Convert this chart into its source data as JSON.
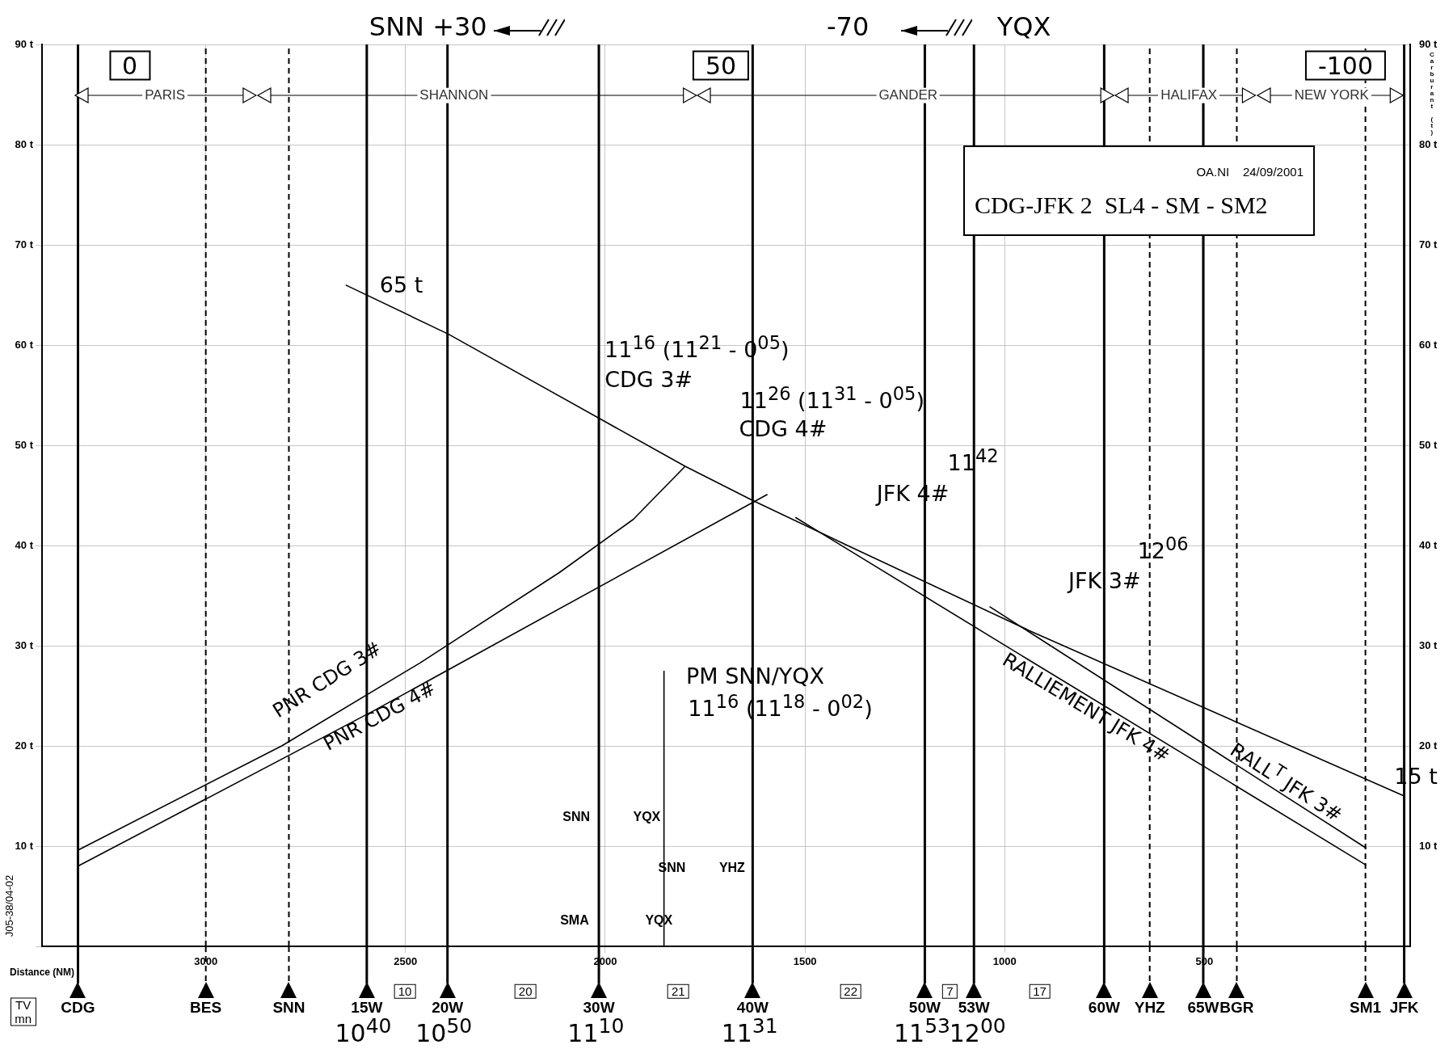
{
  "chart_data": {
    "type": "line",
    "title": "CDG-JFK 2  SL4 - SM - SM2",
    "subtitle": "OA.NI    24/09/2001",
    "xlabel": "Distance (NM)",
    "ylabel": "J05-38/04-02",
    "y2label": "Carburant (t)",
    "xlim": [
      3410,
      -15
    ],
    "xticks": [
      3000,
      2500,
      2000,
      1500,
      1000,
      500
    ],
    "ylim": [
      0,
      90
    ],
    "yticks": [
      {
        "value": 0,
        "label": null
      },
      {
        "value": 10,
        "label": "10 t"
      },
      {
        "value": 20,
        "label": "20 t"
      },
      {
        "value": 30,
        "label": "30 t"
      },
      {
        "value": 40,
        "label": "40 t"
      },
      {
        "value": 50,
        "label": "50 t"
      },
      {
        "value": 60,
        "label": "60 t"
      },
      {
        "value": 70,
        "label": "70 t"
      },
      {
        "value": 80,
        "label": "80 t"
      },
      {
        "value": 90,
        "label": "90 t"
      }
    ],
    "y2lim": [
      0,
      90
    ],
    "y2ticks": [
      {
        "value": 0,
        "label": null
      },
      {
        "value": 10,
        "label": "10 t"
      },
      {
        "value": 20,
        "label": "20 t"
      },
      {
        "value": 30,
        "label": "30 t"
      },
      {
        "value": 40,
        "label": "40 t"
      },
      {
        "value": 50,
        "label": "50 t"
      },
      {
        "value": 60,
        "label": "60 t"
      },
      {
        "value": 70,
        "label": "70 t"
      },
      {
        "value": 80,
        "label": "80 t"
      },
      {
        "value": 90,
        "label": "90 t"
      }
    ],
    "grid": true,
    "legend": false,
    "marker": "none",
    "line_style": "solid",
    "series": [
      {
        "color": "#000000",
        "x": [
          2650,
          2393,
          1800,
          1631,
          1399,
          938,
          0
        ],
        "values": [
          66,
          61.1,
          47.9,
          44.5,
          40.1,
          31.5,
          15
        ]
      },
      {
        "name": "PNR CDG 3#",
        "color": "#000000",
        "x": [
          3320,
          2810,
          2463,
          2115,
          1930,
          1800
        ],
        "values": [
          9.6,
          20,
          28.3,
          37.3,
          42.6,
          47.9
        ]
      },
      {
        "name": "PNR CDG 4#",
        "color": "#000000",
        "x": [
          3320,
          2580,
          1594
        ],
        "values": [
          8,
          23.5,
          45.1
        ]
      },
      {
        "name": "RALLIEMENT JFK 4#",
        "color": "#000000",
        "x": [
          1524,
          957,
          95
        ],
        "values": [
          42.8,
          29,
          8.1
        ]
      },
      {
        "name": "RALL$^{T}$ JFK 3#",
        "color": "#000000",
        "x": [
          1038,
          95
        ],
        "values": [
          33.9,
          9.8
        ]
      },
      {
        "color": "#000000",
        "x": [
          1853,
          1853
        ],
        "values": [
          0,
          27.5
        ]
      }
    ],
    "ref_lines": [
      {
        "axis": "x",
        "value": 3320,
        "label": "CDG"
      },
      {
        "axis": "x",
        "value": 3000,
        "label": "BES",
        "line_style": "dashed"
      },
      {
        "axis": "x",
        "value": 2792,
        "label": "SNN",
        "line_style": "dashed"
      },
      {
        "axis": "x",
        "value": 2597,
        "label": "15W"
      },
      {
        "axis": "x",
        "value": 2395,
        "label": "20W"
      },
      {
        "axis": "x",
        "value": 2016,
        "label": "30W"
      },
      {
        "axis": "x",
        "value": 1631,
        "label": "40W"
      },
      {
        "axis": "x",
        "value": 1200,
        "label": "50W"
      },
      {
        "axis": "x",
        "value": 1077,
        "label": "53W"
      },
      {
        "axis": "x",
        "value": 751,
        "label": "60W"
      },
      {
        "axis": "x",
        "value": 637,
        "label": "YHZ",
        "line_style": "dashed"
      },
      {
        "axis": "x",
        "value": 503,
        "label": "65W"
      },
      {
        "axis": "x",
        "value": 419,
        "label": "BGR",
        "line_style": "dashed"
      },
      {
        "axis": "x",
        "value": 97,
        "label": "SM1",
        "line_style": "dashed"
      },
      {
        "axis": "x",
        "value": 0,
        "label": "JFK"
      }
    ],
    "annotations": [
      "SNN +30",
      "-70",
      "YQX",
      "0",
      "50",
      "-100",
      "65 t",
      "15 t",
      "11$^{16}$ (11$^{21}$ - 0$^{05}$)",
      "CDG 3#",
      "11$^{26}$ (11$^{31}$ - 0$^{05}$)",
      "CDG 4#",
      "11$^{42}$",
      "JFK 4#",
      "12$^{06}$",
      "JFK 3#",
      "PM SNN/YQX",
      "11$^{16}$ (11$^{18}$ - 0$^{02}$)",
      "SNN",
      "YQX",
      "SNN",
      "YHZ",
      "SMA",
      "YQX",
      "TV mn",
      "10",
      "20",
      "21",
      "22",
      "7",
      "17",
      "10$^{40}$",
      "10$^{50}$",
      "11$^{10}$",
      "11$^{31}$",
      "11$^{53}$",
      "12$^{00}$",
      "PARIS",
      "SHANNON",
      "GANDER",
      "HALIFAX",
      "NEW YORK"
    ]
  }
}
